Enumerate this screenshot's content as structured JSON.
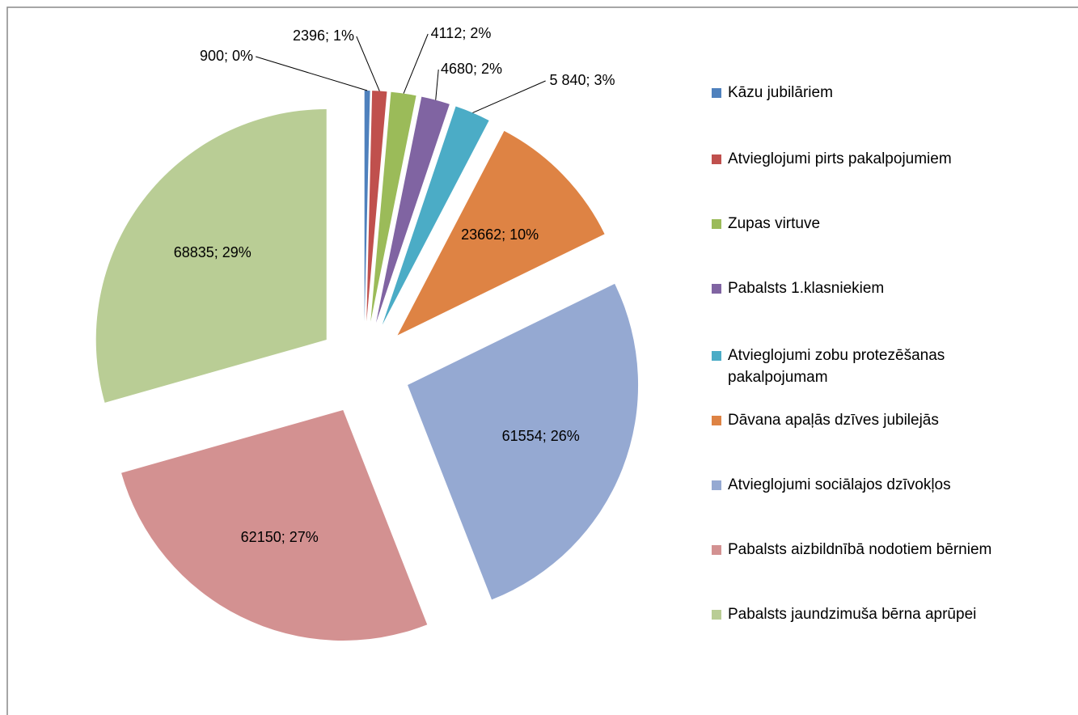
{
  "chart_data": {
    "type": "pie",
    "categories": [
      "Kāzu jubilāriem",
      "Atvieglojumi pirts pakalpojumiem",
      "Zupas virtuve",
      "Pabalsts  1.klasniekiem",
      "Atvieglojumi zobu protezēšanas pakalpojumam",
      "Dāvana apaļās dzīves jubilejās",
      "Atvieglojumi sociālajos dzīvokļos",
      "Pabalsts aizbildnībā nodotiem bērniem",
      "Pabalsts jaundzimuša bērna aprūpei"
    ],
    "values": [
      900,
      2396,
      4112,
      4680,
      5840,
      23662,
      61554,
      62150,
      68835
    ],
    "value_labels": [
      "900; 0%",
      "2396; 1%",
      "4112; 2%",
      "4680; 2%",
      "5 840; 3%",
      "23662; 10%",
      "61554; 26%",
      "62150; 27%",
      "68835; 29%"
    ],
    "colors": [
      "#4F81BD",
      "#C0504D",
      "#9BBB59",
      "#8064A2",
      "#4BACC6",
      "#DE8344",
      "#95A9D2",
      "#D39191",
      "#B9CD95"
    ],
    "legend": "right"
  }
}
